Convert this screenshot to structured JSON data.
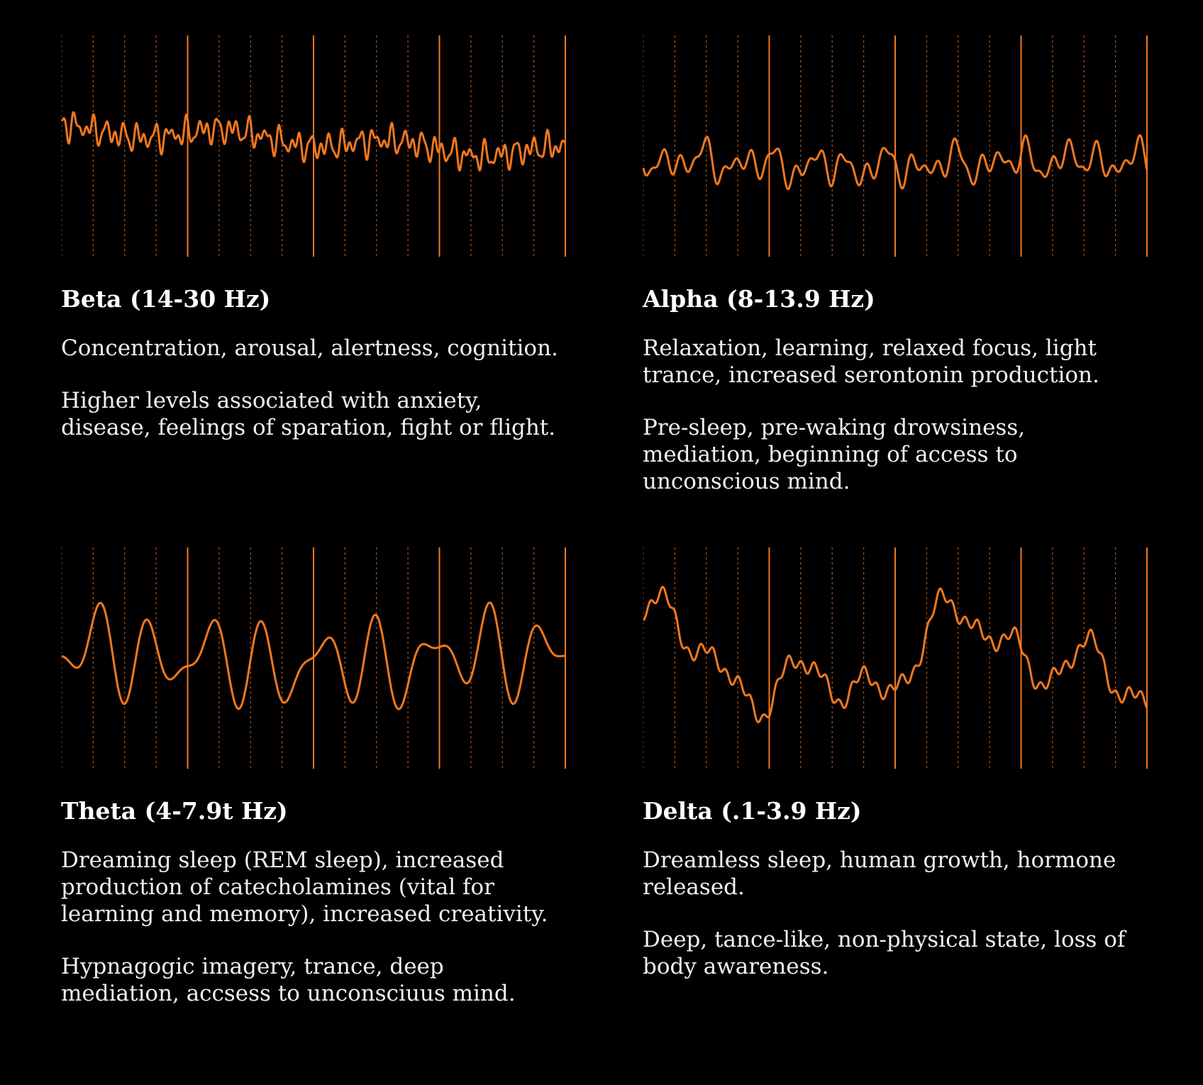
{
  "colors": {
    "background": "#000000",
    "wave": "#f07820",
    "text": "#f2f2f2"
  },
  "panels": [
    {
      "title": "Beta (14-30 Hz)",
      "paragraphs": [
        "Concentration, arousal, alertness, cognition.",
        "Higher levels associated with anxiety, disease, feelings of sparation, fight or flight."
      ],
      "wave": {
        "seed": 11,
        "components": [
          [
            0.5,
            0.22
          ],
          [
            3.0,
            0.12
          ],
          [
            32,
            0.16
          ],
          [
            49,
            0.12
          ],
          [
            71,
            0.1
          ]
        ],
        "baseline": 0.48,
        "amp": 0.32
      }
    },
    {
      "title": "Alpha (8-13.9 Hz)",
      "paragraphs": [
        "Relaxation, learning, relaxed focus, light trance, increased serontonin production.",
        "Pre-sleep, pre-waking drowsiness, mediation, beginning of access to unconscious mind."
      ],
      "wave": {
        "seed": 23,
        "components": [
          [
            1.2,
            0.1
          ],
          [
            8,
            0.18
          ],
          [
            14,
            0.3
          ],
          [
            22,
            0.28
          ],
          [
            35,
            0.22
          ]
        ],
        "baseline": 0.58,
        "amp": 0.3
      }
    },
    {
      "title": "Theta (4-7.9t Hz)",
      "paragraphs": [
        "Dreaming sleep (REM sleep), increased production of catecholamines (vital for learning and memory), increased creativity.",
        "Hypnagogic imagery, trance, deep mediation, accsess to unconsciuus mind."
      ],
      "wave": {
        "seed": 37,
        "components": [
          [
            1.0,
            0.12
          ],
          [
            9,
            0.48
          ],
          [
            13,
            0.3
          ],
          [
            4,
            0.1
          ]
        ],
        "baseline": 0.5,
        "amp": 0.58
      }
    },
    {
      "title": "Delta (.1-3.9 Hz)",
      "paragraphs": [
        "Dreamless sleep, human growth, hormone released.",
        "Deep, tance-like, non-physical state, loss of body awareness."
      ],
      "wave": {
        "seed": 53,
        "components": [
          [
            1.5,
            0.35
          ],
          [
            3.5,
            0.25
          ],
          [
            7,
            0.18
          ],
          [
            13,
            0.1
          ],
          [
            40,
            0.06
          ]
        ],
        "baseline": 0.52,
        "amp": 0.78
      }
    }
  ]
}
